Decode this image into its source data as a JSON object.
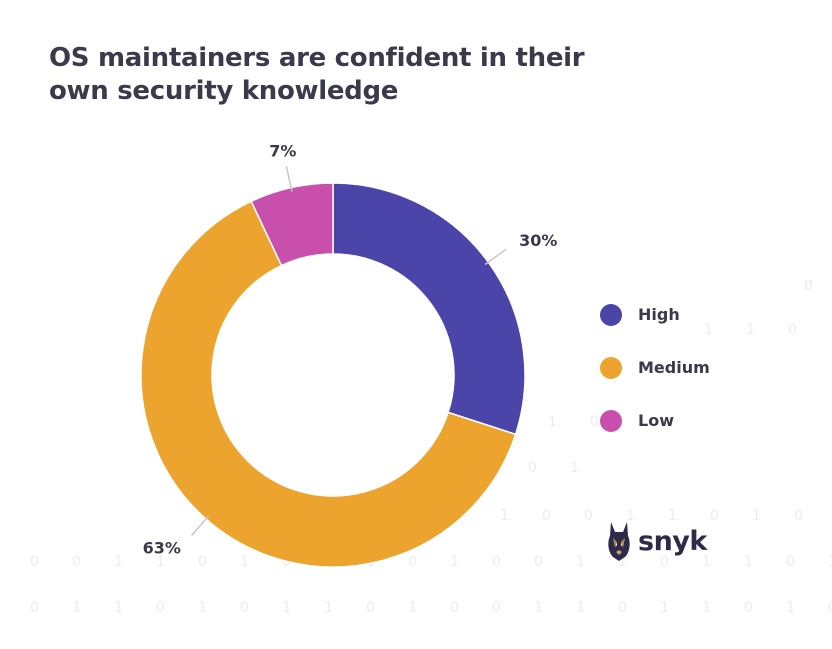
{
  "title": "OS maintainers are confident in their own security knowledge",
  "chart_data": {
    "type": "pie",
    "categories": [
      "High",
      "Medium",
      "Low"
    ],
    "values": [
      30,
      63,
      7
    ],
    "value_labels": [
      "30%",
      "63%",
      "7%"
    ],
    "colors": [
      "#4b44a9",
      "#eda42e",
      "#c94fac"
    ],
    "legend_position": "right"
  },
  "legend": [
    {
      "label": "High",
      "color": "#4b44a9"
    },
    {
      "label": "Medium",
      "color": "#eda42e"
    },
    {
      "label": "Low",
      "color": "#c94fac"
    }
  ],
  "logo": {
    "text": "snyk",
    "icon": "doberman-logo-icon"
  }
}
